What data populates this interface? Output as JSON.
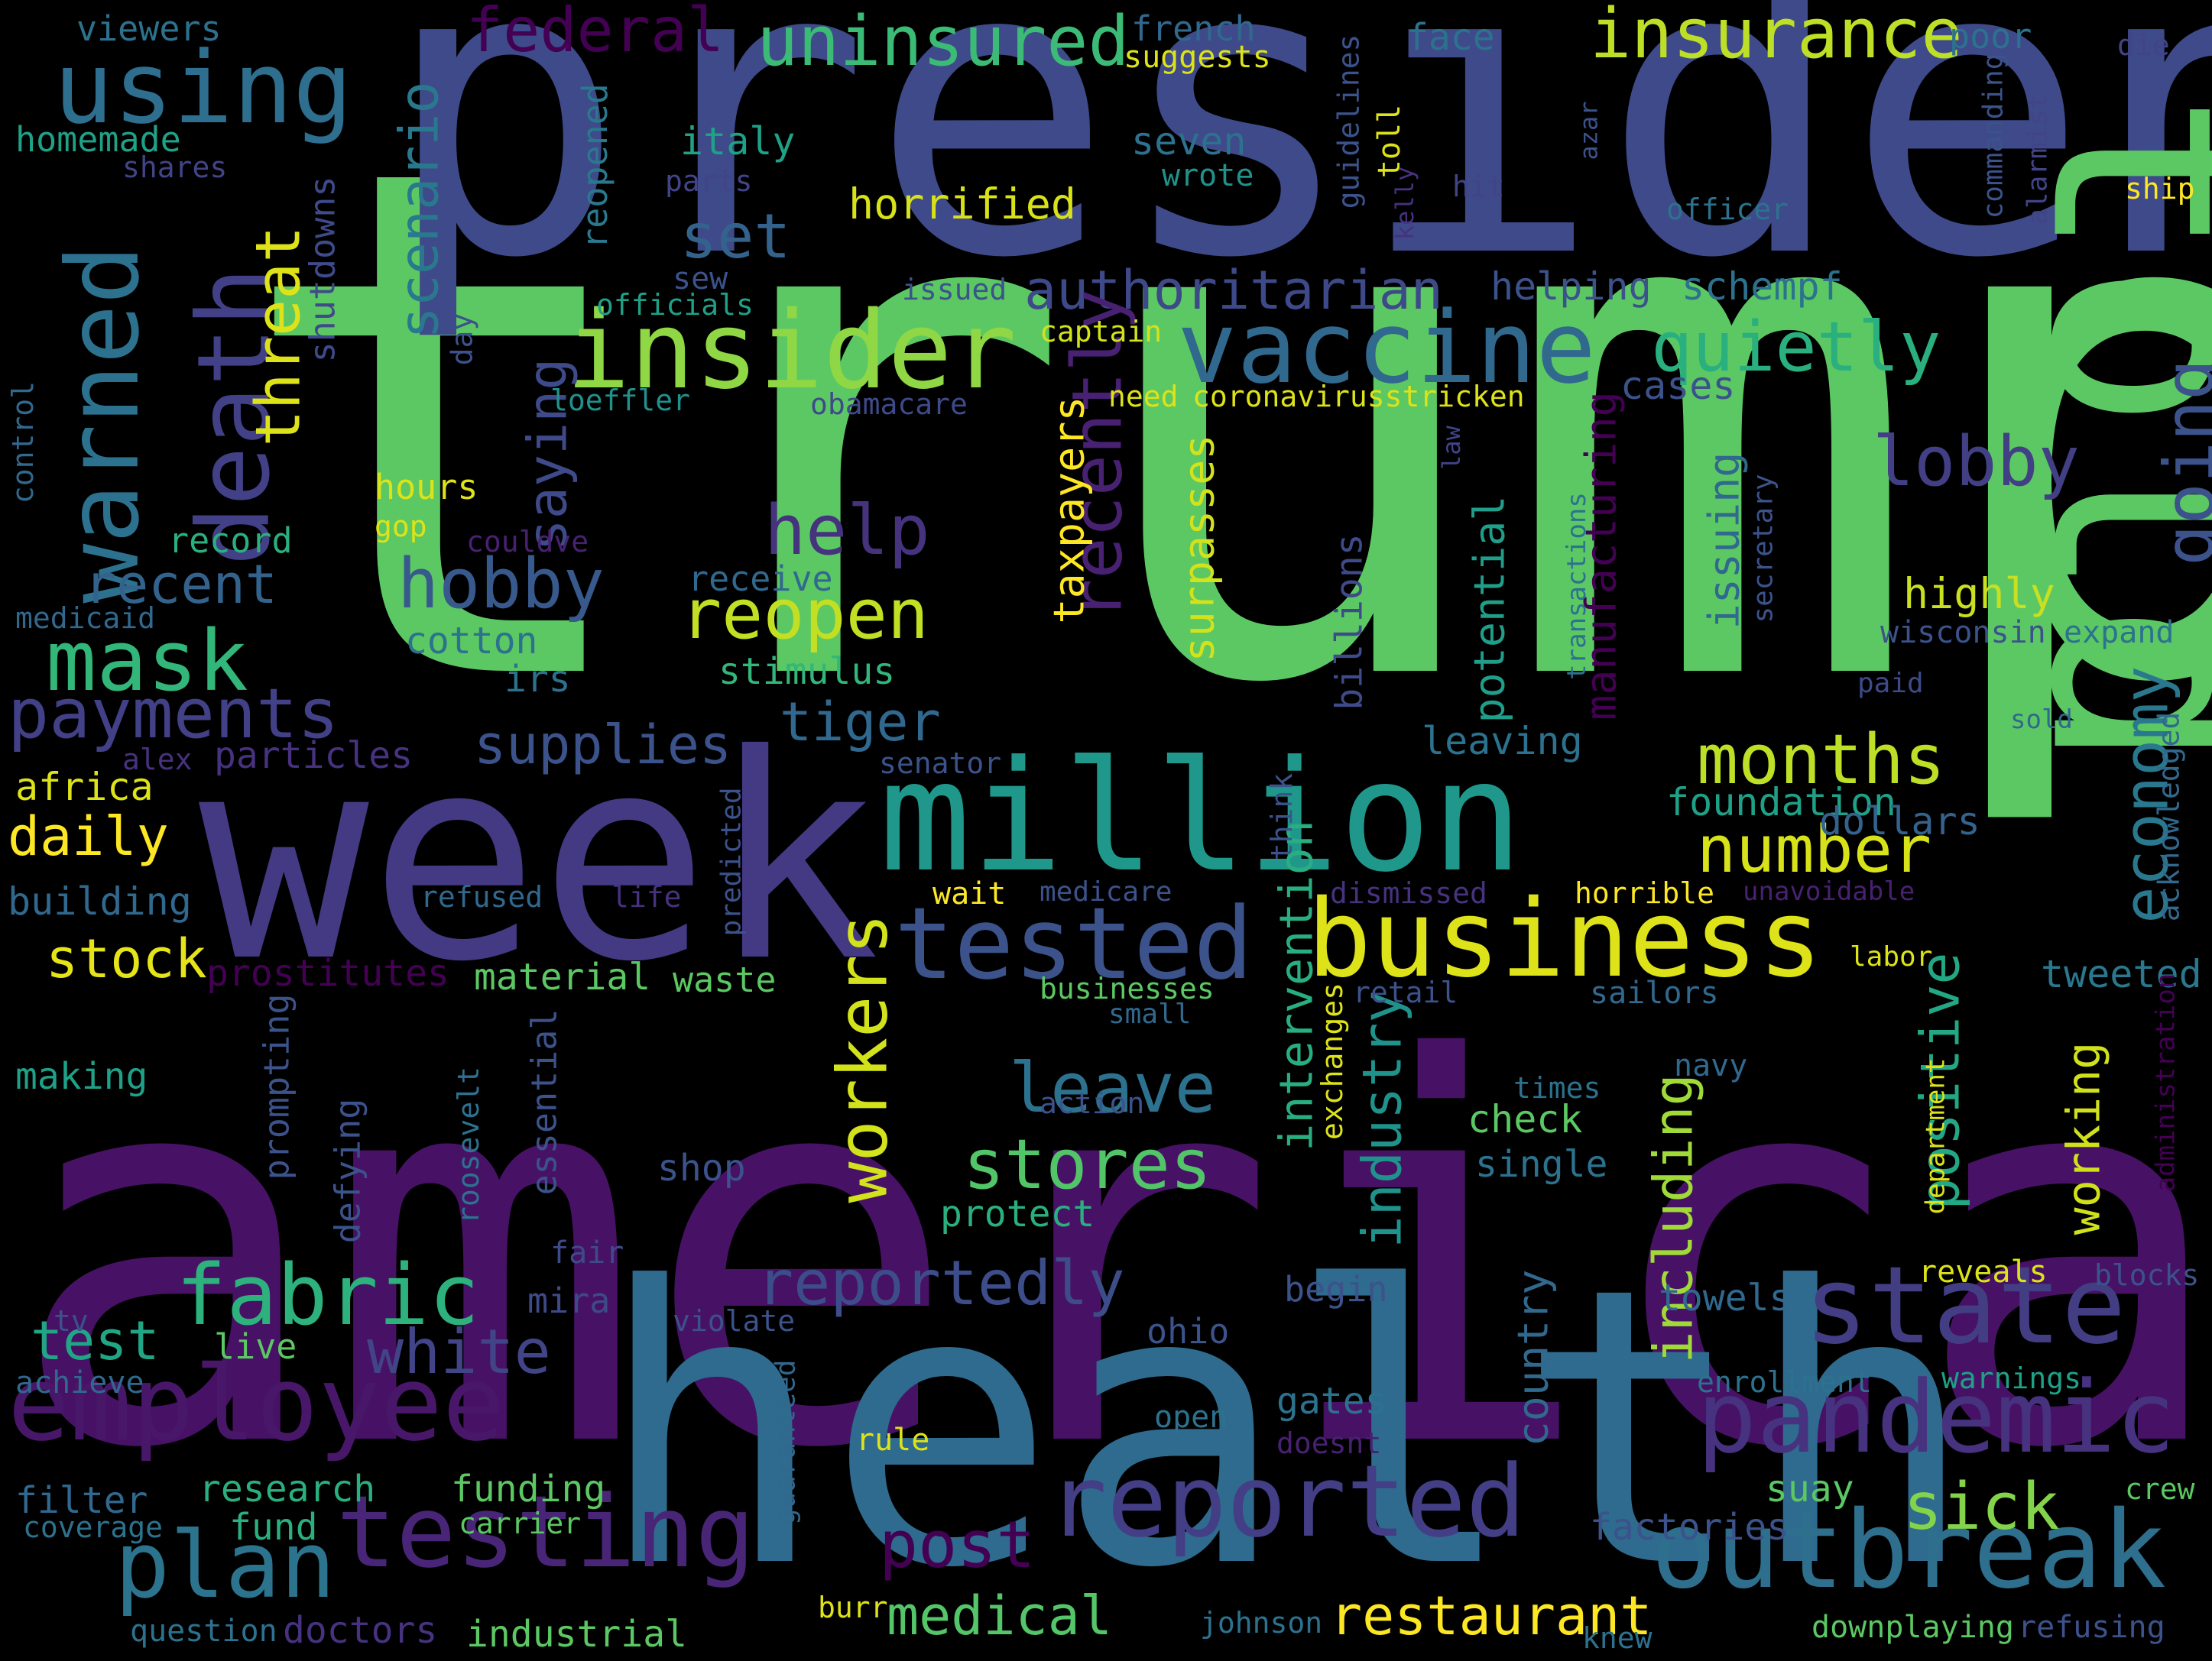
{
  "words": [
    {
      "text": "trump",
      "color": "#5cc863"
    },
    {
      "text": "american",
      "color": "#471265"
    },
    {
      "text": "president",
      "color": "#3e4a89"
    },
    {
      "text": "health",
      "color": "#2f6b8e"
    },
    {
      "text": "week",
      "color": "#443983"
    },
    {
      "text": "told",
      "color": "#5cc863"
    },
    {
      "text": "million",
      "color": "#1f988b"
    },
    {
      "text": "business",
      "color": "#dde318"
    },
    {
      "text": "tested",
      "color": "#3b528b"
    },
    {
      "text": "vaccine",
      "color": "#31688e"
    },
    {
      "text": "insider",
      "color": "#8fd744"
    },
    {
      "text": "death",
      "color": "#424086"
    },
    {
      "text": "warned",
      "color": "#2c728e"
    },
    {
      "text": "using",
      "color": "#2e6e8e"
    },
    {
      "text": "employee",
      "color": "#481769"
    },
    {
      "text": "testing",
      "color": "#482576"
    },
    {
      "text": "reported",
      "color": "#433e85"
    },
    {
      "text": "outbreak",
      "color": "#2e6f8e"
    },
    {
      "text": "pandemic",
      "color": "#46327e"
    },
    {
      "text": "state",
      "color": "#433d84"
    },
    {
      "text": "plan",
      "color": "#2c738e"
    },
    {
      "text": "fabric",
      "color": "#2db27d"
    },
    {
      "text": "insurance",
      "color": "#bddf26"
    },
    {
      "text": "uninsured",
      "color": "#3bbb75"
    },
    {
      "text": "federal",
      "color": "#440154"
    },
    {
      "text": "mask",
      "color": "#32b67a"
    },
    {
      "text": "payments",
      "color": "#424086"
    },
    {
      "text": "quietly",
      "color": "#2ab07f"
    },
    {
      "text": "authoritarian",
      "color": "#3e4989"
    },
    {
      "text": "reopen",
      "color": "#c2df23"
    },
    {
      "text": "hobby",
      "color": "#38598c"
    },
    {
      "text": "help",
      "color": "#46337e"
    },
    {
      "text": "recently",
      "color": "#482173"
    },
    {
      "text": "lobby",
      "color": "#423f85"
    },
    {
      "text": "going",
      "color": "#3b528b"
    },
    {
      "text": "months",
      "color": "#bddf26"
    },
    {
      "text": "number",
      "color": "#d8e219"
    },
    {
      "text": "economy",
      "color": "#2a788e"
    },
    {
      "text": "stores",
      "color": "#52c569"
    },
    {
      "text": "leave",
      "color": "#2c728e"
    },
    {
      "text": "workers",
      "color": "#d2e21b"
    },
    {
      "text": "reportedly",
      "color": "#3d4d8a"
    },
    {
      "text": "white",
      "color": "#414487"
    },
    {
      "text": "test",
      "color": "#21a685"
    },
    {
      "text": "sick",
      "color": "#84d44b"
    },
    {
      "text": "post",
      "color": "#440154"
    },
    {
      "text": "restaurant",
      "color": "#fde725"
    },
    {
      "text": "medical",
      "color": "#54c568"
    },
    {
      "text": "threat",
      "color": "#dde318"
    },
    {
      "text": "scenario",
      "color": "#2a788e"
    },
    {
      "text": "set",
      "color": "#33638d"
    },
    {
      "text": "saying",
      "color": "#3e4a89"
    },
    {
      "text": "recent",
      "color": "#33638d"
    },
    {
      "text": "supplies",
      "color": "#3b528b"
    },
    {
      "text": "tiger",
      "color": "#31688e"
    },
    {
      "text": "daily",
      "color": "#fde725"
    },
    {
      "text": "stock",
      "color": "#e5e419"
    },
    {
      "text": "industry",
      "color": "#20928c"
    },
    {
      "text": "including",
      "color": "#a0da39"
    },
    {
      "text": "positive",
      "color": "#22a884"
    },
    {
      "text": "working",
      "color": "#d0e11c"
    },
    {
      "text": "intervention",
      "color": "#28ae80"
    },
    {
      "text": "taxpayers",
      "color": "#fde725"
    },
    {
      "text": "surpasses",
      "color": "#d2e21b"
    },
    {
      "text": "potential",
      "color": "#1f9e89"
    },
    {
      "text": "manufacturing",
      "color": "#440154"
    },
    {
      "text": "issuing",
      "color": "#31688e"
    },
    {
      "text": "highly",
      "color": "#c8e020"
    },
    {
      "text": "country",
      "color": "#31688e"
    },
    {
      "text": "foundation",
      "color": "#1fa187"
    },
    {
      "text": "dollars",
      "color": "#33638d"
    },
    {
      "text": "tweeted",
      "color": "#2a788e"
    },
    {
      "text": "wisconsin",
      "color": "#3b528b"
    },
    {
      "text": "expand",
      "color": "#2c728e"
    },
    {
      "text": "leaving",
      "color": "#2c728e"
    },
    {
      "text": "helping",
      "color": "#3b528b"
    },
    {
      "text": "schempf",
      "color": "#2c728e"
    },
    {
      "text": "cases",
      "color": "#3b528b"
    },
    {
      "text": "horrified",
      "color": "#d8e219"
    },
    {
      "text": "italy",
      "color": "#1fa187"
    },
    {
      "text": "seven",
      "color": "#2c728e"
    },
    {
      "text": "wrote",
      "color": "#20928c"
    },
    {
      "text": "reopened",
      "color": "#2a788e"
    },
    {
      "text": "shutdowns",
      "color": "#3e4a89"
    },
    {
      "text": "sew",
      "color": "#3b528b"
    },
    {
      "text": "officials",
      "color": "#1fa187"
    },
    {
      "text": "issued",
      "color": "#3b528b"
    },
    {
      "text": "captain",
      "color": "#d2e21b"
    },
    {
      "text": "day",
      "color": "#3b528b"
    },
    {
      "text": "loeffler",
      "color": "#21918c"
    },
    {
      "text": "obamacare",
      "color": "#3e4a89"
    },
    {
      "text": "need",
      "color": "#dde318"
    },
    {
      "text": "coronavirusstricken",
      "color": "#dde318"
    },
    {
      "text": "hours",
      "color": "#dde318"
    },
    {
      "text": "gop",
      "color": "#dde318"
    },
    {
      "text": "couldve",
      "color": "#482173"
    },
    {
      "text": "record",
      "color": "#2ab07f"
    },
    {
      "text": "receive",
      "color": "#31688e"
    },
    {
      "text": "stimulus",
      "color": "#33b67a"
    },
    {
      "text": "cotton",
      "color": "#2c728e"
    },
    {
      "text": "irs",
      "color": "#2c728e"
    },
    {
      "text": "viewers",
      "color": "#2c728e"
    },
    {
      "text": "homemade",
      "color": "#1fa187"
    },
    {
      "text": "shares",
      "color": "#414487"
    },
    {
      "text": "parts",
      "color": "#414487"
    },
    {
      "text": "french",
      "color": "#31688e"
    },
    {
      "text": "suggests",
      "color": "#dde318"
    },
    {
      "text": "guidelines",
      "color": "#3b528b"
    },
    {
      "text": "toll",
      "color": "#dde318"
    },
    {
      "text": "kelly",
      "color": "#46327e"
    },
    {
      "text": "face",
      "color": "#2c728e"
    },
    {
      "text": "azar",
      "color": "#3b528b"
    },
    {
      "text": "hit",
      "color": "#414487"
    },
    {
      "text": "poor",
      "color": "#2c728e"
    },
    {
      "text": "die",
      "color": "#414487"
    },
    {
      "text": "ship",
      "color": "#fde725"
    },
    {
      "text": "officer",
      "color": "#2c728e"
    },
    {
      "text": "commanding",
      "color": "#3b528b"
    },
    {
      "text": "alarmist",
      "color": "#414487"
    },
    {
      "text": "law",
      "color": "#414487"
    },
    {
      "text": "secretary",
      "color": "#3b528b"
    },
    {
      "text": "transactions",
      "color": "#2c728e"
    },
    {
      "text": "billions",
      "color": "#3e4a89"
    },
    {
      "text": "control",
      "color": "#31688e"
    },
    {
      "text": "medicaid",
      "color": "#31688e"
    },
    {
      "text": "alex",
      "color": "#46327e"
    },
    {
      "text": "particles",
      "color": "#46327e"
    },
    {
      "text": "africa",
      "color": "#dde318"
    },
    {
      "text": "building",
      "color": "#31688e"
    },
    {
      "text": "refused",
      "color": "#31688e"
    },
    {
      "text": "life",
      "color": "#46327e"
    },
    {
      "text": "predicted",
      "color": "#3b528b"
    },
    {
      "text": "senator",
      "color": "#3b528b"
    },
    {
      "text": "think",
      "color": "#3b528b"
    },
    {
      "text": "medicare",
      "color": "#3b528b"
    },
    {
      "text": "wait",
      "color": "#fde725"
    },
    {
      "text": "prostitutes",
      "color": "#440154"
    },
    {
      "text": "material",
      "color": "#5cc863"
    },
    {
      "text": "waste",
      "color": "#5cc863"
    },
    {
      "text": "dismissed",
      "color": "#46327e"
    },
    {
      "text": "horrible",
      "color": "#fde725"
    },
    {
      "text": "unavoidable",
      "color": "#482173"
    },
    {
      "text": "acknowledged",
      "color": "#31688e"
    },
    {
      "text": "labor",
      "color": "#dde318"
    },
    {
      "text": "paid",
      "color": "#3e4a89"
    },
    {
      "text": "sold",
      "color": "#31688e"
    },
    {
      "text": "businesses",
      "color": "#5cc863"
    },
    {
      "text": "small",
      "color": "#31688e"
    },
    {
      "text": "retail",
      "color": "#3b528b"
    },
    {
      "text": "sailors",
      "color": "#31688e"
    },
    {
      "text": "exchanges",
      "color": "#dde318"
    },
    {
      "text": "navy",
      "color": "#31688e"
    },
    {
      "text": "times",
      "color": "#2c728e"
    },
    {
      "text": "action",
      "color": "#3b528b"
    },
    {
      "text": "check",
      "color": "#5cc863"
    },
    {
      "text": "single",
      "color": "#2c728e"
    },
    {
      "text": "department",
      "color": "#dde318"
    },
    {
      "text": "administration",
      "color": "#440154"
    },
    {
      "text": "making",
      "color": "#1fa187"
    },
    {
      "text": "prompting",
      "color": "#3b528b"
    },
    {
      "text": "defying",
      "color": "#3b528b"
    },
    {
      "text": "roosevelt",
      "color": "#2c728e"
    },
    {
      "text": "essential",
      "color": "#3b528b"
    },
    {
      "text": "shop",
      "color": "#3b528b"
    },
    {
      "text": "protect",
      "color": "#2ab07f"
    },
    {
      "text": "fair",
      "color": "#3e4a89"
    },
    {
      "text": "mira",
      "color": "#3e4a89"
    },
    {
      "text": "begin",
      "color": "#3b528b"
    },
    {
      "text": "ohio",
      "color": "#3b528b"
    },
    {
      "text": "violate",
      "color": "#3b528b"
    },
    {
      "text": "towels",
      "color": "#31688e"
    },
    {
      "text": "reveals",
      "color": "#dde318"
    },
    {
      "text": "blocks",
      "color": "#3b528b"
    },
    {
      "text": "tv",
      "color": "#3b528b"
    },
    {
      "text": "live",
      "color": "#5cc863"
    },
    {
      "text": "achieve",
      "color": "#31688e"
    },
    {
      "text": "guaranteed",
      "color": "#31688e"
    },
    {
      "text": "gates",
      "color": "#2c728e"
    },
    {
      "text": "open",
      "color": "#2c728e"
    },
    {
      "text": "doesnt",
      "color": "#482173"
    },
    {
      "text": "enrollment",
      "color": "#2c728e"
    },
    {
      "text": "warnings",
      "color": "#1fa187"
    },
    {
      "text": "rule",
      "color": "#dde318"
    },
    {
      "text": "filter",
      "color": "#31688e"
    },
    {
      "text": "research",
      "color": "#2ab07f"
    },
    {
      "text": "funding",
      "color": "#5cc863"
    },
    {
      "text": "coverage",
      "color": "#2c728e"
    },
    {
      "text": "fund",
      "color": "#2ab07f"
    },
    {
      "text": "carrier",
      "color": "#5cc863"
    },
    {
      "text": "suay",
      "color": "#5cc863"
    },
    {
      "text": "crew",
      "color": "#5cc863"
    },
    {
      "text": "factories",
      "color": "#3b528b"
    },
    {
      "text": "burr",
      "color": "#dde318"
    },
    {
      "text": "question",
      "color": "#2c728e"
    },
    {
      "text": "doctors",
      "color": "#46327e"
    },
    {
      "text": "industrial",
      "color": "#5cc863"
    },
    {
      "text": "johnson",
      "color": "#2c728e"
    },
    {
      "text": "knew",
      "color": "#2c728e"
    },
    {
      "text": "downplaying",
      "color": "#5cc863"
    },
    {
      "text": "refusing",
      "color": "#3b528b"
    }
  ]
}
